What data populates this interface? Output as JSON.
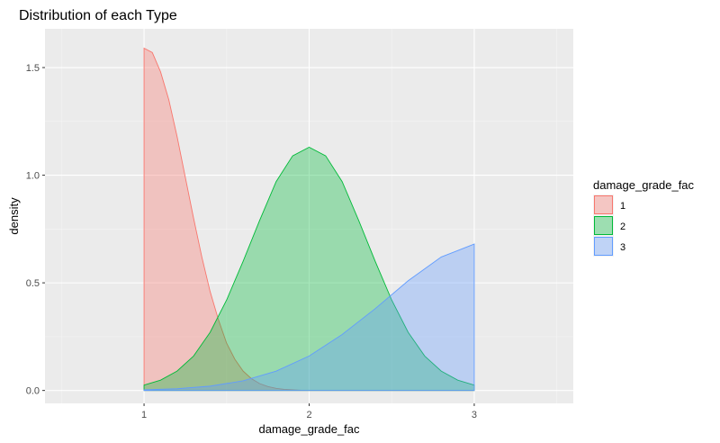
{
  "chart_data": {
    "type": "area",
    "title": "Distribution of each Type",
    "xlabel": "damage_grade_fac",
    "ylabel": "density",
    "xlim": [
      0.4,
      3.6
    ],
    "ylim": [
      -0.06,
      1.68
    ],
    "x_ticks": [
      1,
      2,
      3
    ],
    "x_tick_labels": [
      "1",
      "2",
      "3"
    ],
    "y_ticks": [
      0.0,
      0.5,
      1.0,
      1.5
    ],
    "y_tick_labels": [
      "0.0",
      "0.5",
      "1.0",
      "1.5"
    ],
    "grid": true,
    "legend_title": "damage_grade_fac",
    "legend_position": "right",
    "series": [
      {
        "name": "1",
        "color": "#F8766D",
        "x": [
          1.0,
          1.05,
          1.1,
          1.15,
          1.2,
          1.25,
          1.3,
          1.35,
          1.4,
          1.45,
          1.5,
          1.55,
          1.6,
          1.65,
          1.7,
          1.75,
          1.8,
          1.85,
          1.9,
          1.95,
          2.0,
          2.2,
          2.4,
          2.6,
          2.8,
          3.0
        ],
        "values": [
          1.59,
          1.57,
          1.48,
          1.35,
          1.18,
          0.99,
          0.8,
          0.62,
          0.46,
          0.33,
          0.22,
          0.145,
          0.09,
          0.055,
          0.032,
          0.018,
          0.01,
          0.005,
          0.003,
          0.001,
          0.0,
          0.0,
          0.0,
          0.0,
          0.0,
          0.0
        ]
      },
      {
        "name": "2",
        "color": "#00BA38",
        "x": [
          1.0,
          1.1,
          1.2,
          1.3,
          1.4,
          1.5,
          1.6,
          1.7,
          1.8,
          1.9,
          2.0,
          2.1,
          2.2,
          2.3,
          2.4,
          2.5,
          2.6,
          2.7,
          2.8,
          2.9,
          3.0
        ],
        "values": [
          0.025,
          0.048,
          0.09,
          0.16,
          0.27,
          0.42,
          0.6,
          0.79,
          0.97,
          1.09,
          1.13,
          1.09,
          0.97,
          0.79,
          0.6,
          0.42,
          0.27,
          0.16,
          0.09,
          0.048,
          0.025
        ]
      },
      {
        "name": "3",
        "color": "#619CFF",
        "x": [
          1.0,
          1.2,
          1.4,
          1.6,
          1.8,
          2.0,
          2.2,
          2.4,
          2.6,
          2.8,
          3.0
        ],
        "values": [
          0.003,
          0.008,
          0.02,
          0.045,
          0.09,
          0.16,
          0.26,
          0.38,
          0.51,
          0.62,
          0.68
        ]
      }
    ]
  }
}
